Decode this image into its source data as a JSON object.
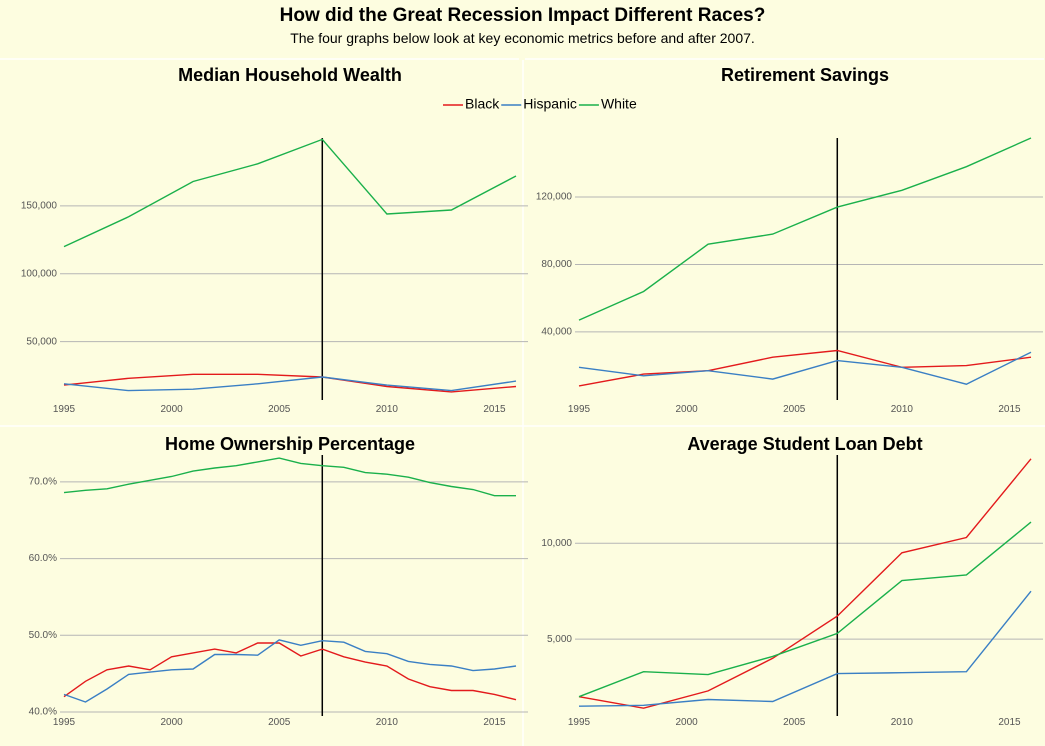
{
  "title": "How did the Great Recession Impact Different Races?",
  "subtitle": "The four graphs below look at key economic metrics before and after 2007.",
  "legend": {
    "placement": "top-center",
    "entries": [
      {
        "name": "Black",
        "color": "#e31a1c"
      },
      {
        "name": "Hispanic",
        "color": "#3a7fc4"
      },
      {
        "name": "White",
        "color": "#1ab04b"
      }
    ]
  },
  "colors": {
    "Black": "#e31a1c",
    "Hispanic": "#3a7fc4",
    "White": "#1ab04b",
    "background": "#fdfde0"
  },
  "chart_data": [
    {
      "type": "line",
      "title": "Median Household Wealth",
      "xlabel": "",
      "ylabel": "",
      "xlim": [
        1995,
        2016
      ],
      "ylim": [
        10000,
        200000
      ],
      "xticks": [
        1995,
        2000,
        2005,
        2010,
        2015
      ],
      "yticks": [
        50000,
        100000,
        150000
      ],
      "yticklabels": [
        "50,000",
        "100,000",
        "150,000"
      ],
      "reference_x": 2007,
      "grid": true,
      "series": [
        {
          "name": "Black",
          "x": [
            1995,
            1998,
            2001,
            2004,
            2007,
            2010,
            2013,
            2016
          ],
          "values": [
            18000,
            23000,
            26000,
            26000,
            24000,
            17000,
            13000,
            17000
          ]
        },
        {
          "name": "Hispanic",
          "x": [
            1995,
            1998,
            2001,
            2004,
            2007,
            2010,
            2013,
            2016
          ],
          "values": [
            19000,
            14000,
            15000,
            19000,
            24000,
            18000,
            14000,
            21000
          ]
        },
        {
          "name": "White",
          "x": [
            1995,
            1998,
            2001,
            2004,
            2007,
            2010,
            2013,
            2016
          ],
          "values": [
            120000,
            142000,
            168000,
            181000,
            199000,
            144000,
            147000,
            172000
          ]
        }
      ]
    },
    {
      "type": "line",
      "title": "Retirement Savings",
      "xlabel": "",
      "ylabel": "",
      "xlim": [
        1995,
        2016
      ],
      "ylim": [
        2000,
        155000
      ],
      "xticks": [
        1995,
        2000,
        2005,
        2010,
        2015
      ],
      "yticks": [
        40000,
        80000,
        120000
      ],
      "yticklabels": [
        "40,000",
        "80,000",
        "120,000"
      ],
      "reference_x": 2007,
      "grid": true,
      "series": [
        {
          "name": "Black",
          "x": [
            1995,
            1998,
            2001,
            2004,
            2007,
            2010,
            2013,
            2016
          ],
          "values": [
            8000,
            15000,
            17000,
            25000,
            29000,
            19000,
            20000,
            25000
          ]
        },
        {
          "name": "Hispanic",
          "x": [
            1995,
            1998,
            2001,
            2004,
            2007,
            2010,
            2013,
            2016
          ],
          "values": [
            19000,
            14000,
            17000,
            12000,
            23000,
            19000,
            9000,
            28000
          ]
        },
        {
          "name": "White",
          "x": [
            1995,
            1998,
            2001,
            2004,
            2007,
            2010,
            2013,
            2016
          ],
          "values": [
            47000,
            64000,
            92000,
            98000,
            114000,
            124000,
            138000,
            155000
          ]
        }
      ]
    },
    {
      "type": "line",
      "title": "Home Ownership Percentage",
      "xlabel": "",
      "ylabel": "",
      "xlim": [
        1995,
        2016
      ],
      "ylim": [
        40,
        73.5
      ],
      "xticks": [
        1995,
        2000,
        2005,
        2010,
        2015
      ],
      "yticks": [
        40,
        50,
        60,
        70
      ],
      "yticklabels": [
        "40.0%",
        "50.0%",
        "60.0%",
        "70.0%"
      ],
      "reference_x": 2007,
      "grid": true,
      "series": [
        {
          "name": "Black",
          "x": [
            1995,
            1996,
            1997,
            1998,
            1999,
            2000,
            2001,
            2002,
            2003,
            2004,
            2005,
            2006,
            2007,
            2008,
            2009,
            2010,
            2011,
            2012,
            2013,
            2014,
            2015,
            2016
          ],
          "values": [
            42.0,
            44.0,
            45.5,
            46.0,
            45.5,
            47.2,
            47.7,
            48.2,
            47.7,
            49.0,
            49.0,
            47.3,
            48.2,
            47.2,
            46.5,
            46.0,
            44.3,
            43.3,
            42.8,
            42.8,
            42.3,
            41.6
          ]
        },
        {
          "name": "Hispanic",
          "x": [
            1995,
            1996,
            1997,
            1998,
            1999,
            2000,
            2001,
            2002,
            2003,
            2004,
            2005,
            2006,
            2007,
            2008,
            2009,
            2010,
            2011,
            2012,
            2013,
            2014,
            2015,
            2016
          ],
          "values": [
            42.3,
            41.3,
            43.0,
            44.9,
            45.2,
            45.5,
            45.6,
            47.5,
            47.5,
            47.4,
            49.4,
            48.7,
            49.3,
            49.1,
            47.9,
            47.6,
            46.6,
            46.2,
            46.0,
            45.4,
            45.6,
            46.0
          ]
        },
        {
          "name": "White",
          "x": [
            1995,
            1996,
            1997,
            1998,
            1999,
            2000,
            2001,
            2002,
            2003,
            2004,
            2005,
            2006,
            2007,
            2008,
            2009,
            2010,
            2011,
            2012,
            2013,
            2014,
            2015,
            2016
          ],
          "values": [
            68.6,
            68.9,
            69.1,
            69.7,
            70.2,
            70.7,
            71.4,
            71.8,
            72.1,
            72.6,
            73.1,
            72.4,
            72.1,
            71.9,
            71.2,
            71.0,
            70.6,
            69.9,
            69.4,
            69.0,
            68.2,
            68.2
          ]
        }
      ]
    },
    {
      "type": "line",
      "title": "Average Student Loan Debt",
      "xlabel": "",
      "ylabel": "",
      "xlim": [
        1995,
        2016
      ],
      "ylim": [
        1200,
        14600
      ],
      "xticks": [
        1995,
        2000,
        2005,
        2010,
        2015
      ],
      "yticks": [
        5000,
        10000
      ],
      "yticklabels": [
        "5,000",
        "10,000"
      ],
      "reference_x": 2007,
      "grid": true,
      "series": [
        {
          "name": "Black",
          "x": [
            1995,
            1998,
            2001,
            2004,
            2007,
            2010,
            2013,
            2016
          ],
          "values": [
            2000,
            1400,
            2300,
            4000,
            6200,
            9500,
            10300,
            14400
          ]
        },
        {
          "name": "Hispanic",
          "x": [
            1995,
            1998,
            2001,
            2004,
            2007,
            2010,
            2013,
            2016
          ],
          "values": [
            1500,
            1550,
            1850,
            1750,
            3200,
            3250,
            3300,
            7500
          ]
        },
        {
          "name": "White",
          "x": [
            1995,
            1998,
            2001,
            2004,
            2007,
            2010,
            2013,
            2016
          ],
          "values": [
            2000,
            3300,
            3150,
            4100,
            5300,
            8050,
            8350,
            11100
          ]
        }
      ]
    }
  ]
}
